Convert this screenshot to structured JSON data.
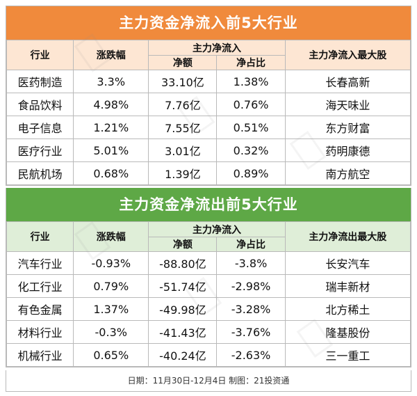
{
  "inflow": {
    "title": "主力资金净流入前5大行业",
    "headers": {
      "industry": "行业",
      "change": "涨跌幅",
      "main_flow": "主力净流入",
      "net_amount": "净额",
      "net_ratio": "净占比",
      "top_stock": "主力净流入最大股"
    },
    "rows": [
      {
        "industry": "医药制造",
        "change": "3.3%",
        "net_amount": "33.10亿",
        "net_ratio": "1.38%",
        "top_stock": "长春高新"
      },
      {
        "industry": "食品饮料",
        "change": "4.98%",
        "net_amount": "7.76亿",
        "net_ratio": "0.76%",
        "top_stock": "海天味业"
      },
      {
        "industry": "电子信息",
        "change": "1.21%",
        "net_amount": "7.55亿",
        "net_ratio": "0.51%",
        "top_stock": "东方财富"
      },
      {
        "industry": "医疗行业",
        "change": "5.01%",
        "net_amount": "3.01亿",
        "net_ratio": "0.32%",
        "top_stock": "药明康德"
      },
      {
        "industry": "民航机场",
        "change": "0.68%",
        "net_amount": "1.39亿",
        "net_ratio": "0.89%",
        "top_stock": "南方航空"
      }
    ]
  },
  "outflow": {
    "title": "主力资金净流出前5大行业",
    "headers": {
      "industry": "行业",
      "change": "涨跌幅",
      "main_flow": "主力净流入",
      "net_amount": "净额",
      "net_ratio": "净占比",
      "top_stock": "主力净流出最大股"
    },
    "rows": [
      {
        "industry": "汽车行业",
        "change": "-0.93%",
        "net_amount": "-88.80亿",
        "net_ratio": "-3.8%",
        "top_stock": "长安汽车"
      },
      {
        "industry": "化工行业",
        "change": "0.79%",
        "net_amount": "-51.74亿",
        "net_ratio": "-2.98%",
        "top_stock": "瑞丰新材"
      },
      {
        "industry": "有色金属",
        "change": "1.37%",
        "net_amount": "-49.98亿",
        "net_ratio": "-3.28%",
        "top_stock": "北方稀土"
      },
      {
        "industry": "材料行业",
        "change": "-0.3%",
        "net_amount": "-41.43亿",
        "net_ratio": "-3.76%",
        "top_stock": "隆基股份"
      },
      {
        "industry": "机械行业",
        "change": "0.65%",
        "net_amount": "-40.24亿",
        "net_ratio": "-2.63%",
        "top_stock": "三一重工"
      }
    ]
  },
  "footer": {
    "text": "日期：11月30日-12月4日 制图：21投资通"
  },
  "colors": {
    "inflow_banner": "#f08a3c",
    "inflow_header": "#fde6d3",
    "outflow_banner": "#5ea846",
    "outflow_header": "#dfeed8"
  }
}
